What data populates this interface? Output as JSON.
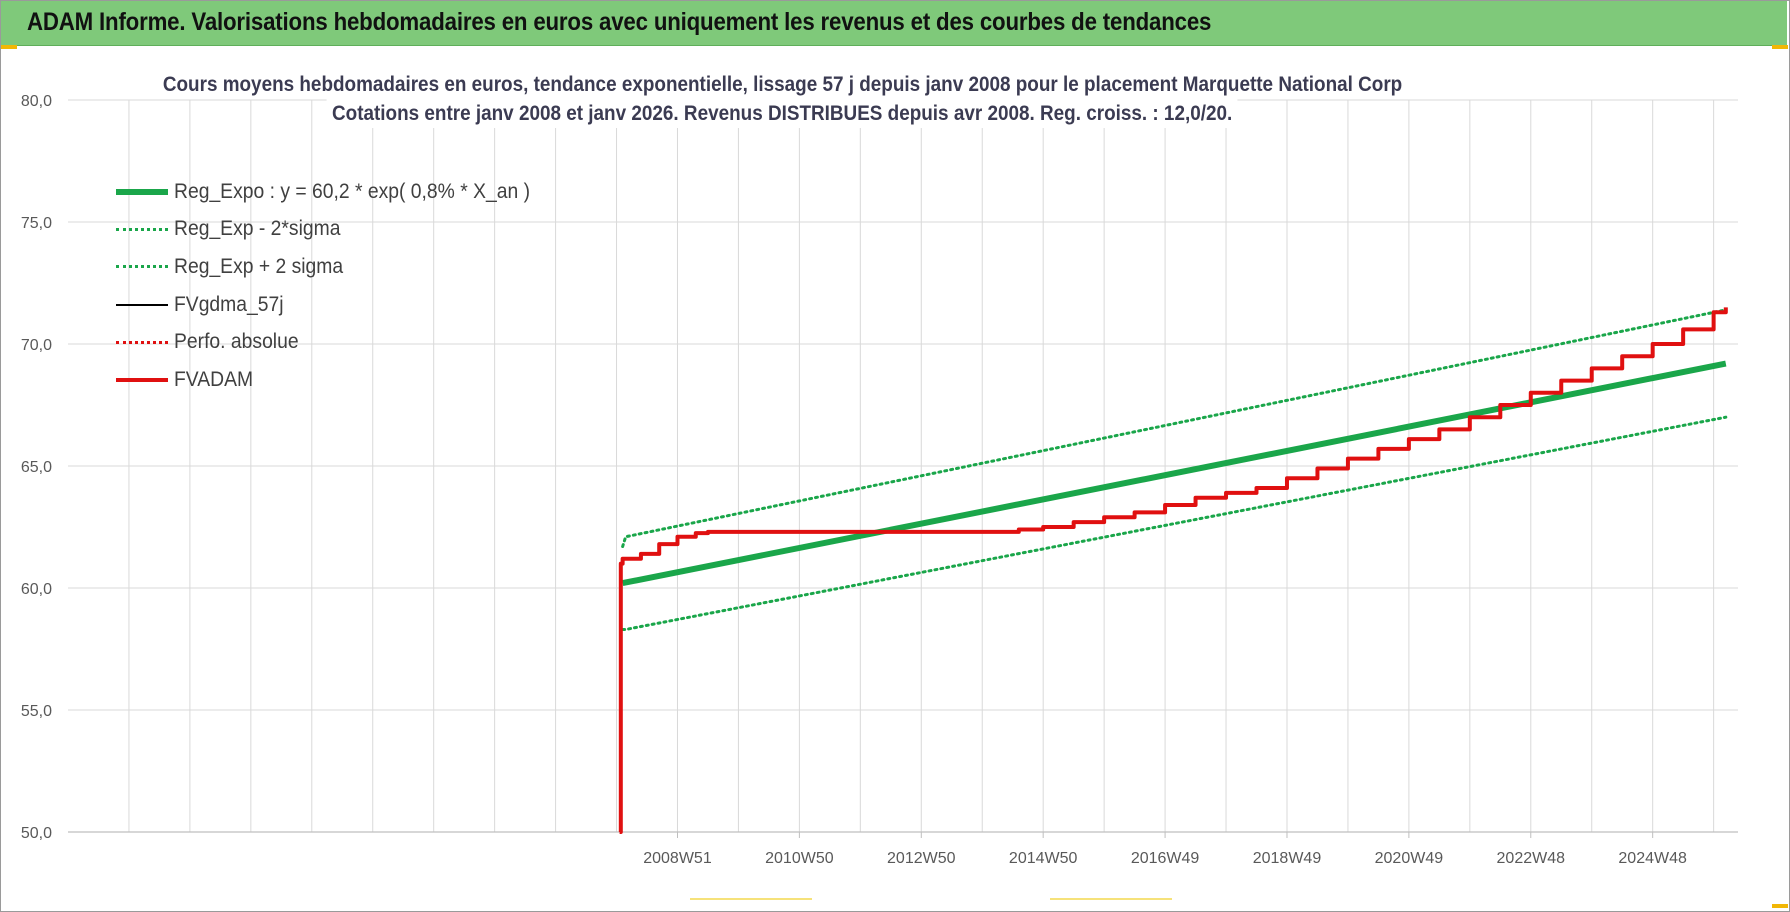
{
  "header": {
    "title": "ADAM Informe. Valorisations hebdomadaires en euros avec uniquement les revenus et des courbes de tendances",
    "background": "#7fc97a"
  },
  "chart_data": {
    "type": "line",
    "title_line1": "Cours moyens hebdomadaires en euros, tendance exponentielle, lissage 57 j depuis janv 2008  pour le placement Marquette National Corp",
    "title_line2": "Cotations entre janv 2008 et janv 2026. Revenus DISTRIBUES depuis avr 2008.  Reg. croiss. : 12,0/20.",
    "xlabel": "",
    "ylabel": "",
    "x_range": [
      1999.0,
      2026.4
    ],
    "ylim": [
      50,
      80
    ],
    "y_ticks": [
      "50,0",
      "55,0",
      "60,0",
      "65,0",
      "70,0",
      "75,0",
      "80,0"
    ],
    "y_tick_values": [
      50,
      55,
      60,
      65,
      70,
      75,
      80
    ],
    "x_tick_labels": [
      "2008W51",
      "2010W50",
      "2012W50",
      "2014W50",
      "2016W49",
      "2018W49",
      "2020W49",
      "2022W48",
      "2024W48"
    ],
    "x_tick_positions": [
      2009.0,
      2011.0,
      2013.0,
      2015.0,
      2017.0,
      2019.0,
      2021.0,
      2023.0,
      2025.0
    ],
    "grid": true,
    "legend_position": "top-left",
    "series": [
      {
        "name": "Reg_Expo : y = 60,2 * exp( 0,8% *  X_an )",
        "color": "#1aa64a",
        "style": "solid",
        "width": 6,
        "x": [
          2008.1,
          2026.2
        ],
        "y": [
          60.2,
          69.2
        ]
      },
      {
        "name": "Reg_Exp - 2*sigma",
        "color": "#1aa64a",
        "style": "dotted",
        "width": 3,
        "x": [
          2008.1,
          2026.2
        ],
        "y": [
          58.3,
          67.0
        ]
      },
      {
        "name": "Reg_Exp + 2 sigma",
        "color": "#1aa64a",
        "style": "dotted",
        "width": 3,
        "x": [
          2008.1,
          2026.2
        ],
        "y": [
          62.1,
          71.4
        ]
      },
      {
        "name": "FVgdma_57j",
        "color": "#000000",
        "style": "solid",
        "width": 2,
        "x": [],
        "y": []
      },
      {
        "name": "Perfo. absolue",
        "color": "#e01010",
        "style": "dotted",
        "width": 2,
        "x": [],
        "y": []
      },
      {
        "name": "FVADAM",
        "color": "#e01010",
        "style": "solid",
        "width": 4,
        "x": [
          2008.05,
          2008.07,
          2008.1,
          2008.4,
          2008.7,
          2009.0,
          2009.3,
          2009.5,
          2010.0,
          2011.0,
          2012.0,
          2013.0,
          2014.2,
          2014.6,
          2015.0,
          2015.5,
          2016.0,
          2016.5,
          2017.0,
          2017.5,
          2018.0,
          2018.5,
          2019.0,
          2019.5,
          2020.0,
          2020.5,
          2021.0,
          2021.5,
          2022.0,
          2022.5,
          2023.0,
          2023.5,
          2024.0,
          2024.5,
          2025.0,
          2025.5,
          2026.0,
          2026.2
        ],
        "y": [
          50.0,
          61.0,
          61.2,
          61.4,
          61.8,
          62.1,
          62.25,
          62.3,
          62.3,
          62.3,
          62.3,
          62.3,
          62.3,
          62.4,
          62.5,
          62.7,
          62.9,
          63.1,
          63.4,
          63.7,
          63.9,
          64.1,
          64.5,
          64.9,
          65.3,
          65.7,
          66.1,
          66.5,
          67.0,
          67.5,
          68.0,
          68.5,
          69.0,
          69.5,
          70.0,
          70.6,
          71.3,
          71.5
        ]
      }
    ]
  }
}
